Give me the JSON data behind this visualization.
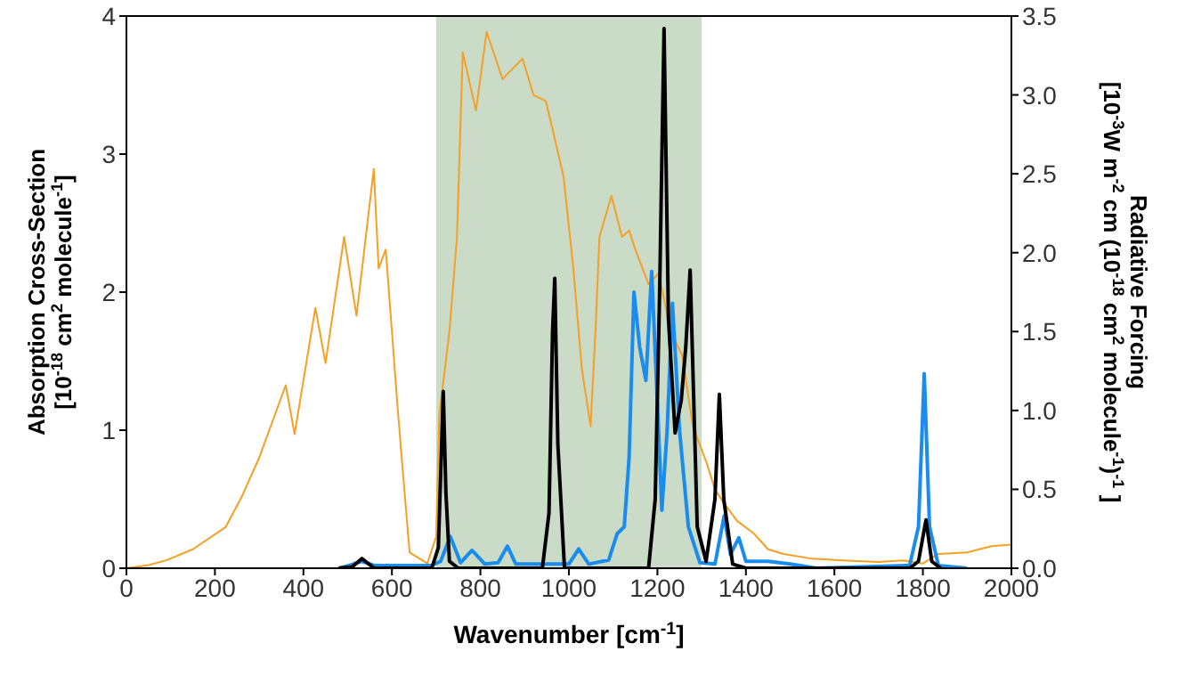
{
  "chart_data": {
    "type": "line",
    "xlabel": "Wavenumber [cm$^{-1}$]",
    "ylabel": "Absorption Cross-Section\n[10$^{-18}$ cm$^{2}$ molecule$^{-1}$]",
    "y2label": "Radiative Forcing\n[10$^{-3}$W m$^{-2}$ cm (10$^{-18}$ cm$^{2}$ molecule$^{-1}$)$^{-1}$ ]",
    "xlim": [
      0,
      2000
    ],
    "xticks": [
      0,
      200,
      400,
      600,
      800,
      1000,
      1200,
      1400,
      1600,
      1800,
      2000
    ],
    "ylim": [
      0,
      4
    ],
    "yticks": [
      0,
      1,
      2,
      3,
      4
    ],
    "y2lim": [
      0,
      3.5
    ],
    "y2ticks": [
      {
        "value": 0,
        "label": "0.0"
      },
      {
        "value": 0.5,
        "label": "0.5"
      },
      {
        "value": 1,
        "label": "1.0"
      },
      {
        "value": 1.5,
        "label": "1.5"
      },
      {
        "value": 2,
        "label": "2.0"
      },
      {
        "value": 2.5,
        "label": "2.5"
      },
      {
        "value": 3,
        "label": "3.0"
      },
      {
        "value": 3.5,
        "label": "3.5"
      }
    ],
    "marker": "none",
    "line_style": "solid",
    "bands": [
      {
        "axis": "x",
        "from": 700,
        "to": 1300,
        "color": "#cadbc8"
      }
    ],
    "series": [
      {
        "color": "#f5a025",
        "axis": "y2",
        "x": [
          0,
          50,
          90,
          150,
          224,
          260,
          300,
          360,
          380,
          427,
          450,
          492,
          520,
          559,
          570,
          586,
          600,
          612,
          625,
          640,
          680,
          700,
          707,
          730,
          747,
          760,
          790,
          814,
          850,
          895,
          920,
          948,
          970,
          988,
          1010,
          1029,
          1049,
          1060,
          1069,
          1096,
          1120,
          1136,
          1150,
          1180,
          1203,
          1230,
          1256,
          1280,
          1311,
          1330,
          1351,
          1380,
          1418,
          1450,
          1485,
          1550,
          1619,
          1700,
          1754,
          1800,
          1834,
          1900,
          1955,
          2000
        ],
        "values": [
          0,
          0.02,
          0.05,
          0.12,
          0.26,
          0.45,
          0.7,
          1.16,
          0.85,
          1.65,
          1.3,
          2.1,
          1.6,
          2.53,
          1.9,
          2.02,
          1.5,
          1.05,
          0.6,
          0.1,
          0.03,
          0.2,
          0.97,
          1.5,
          2.1,
          3.27,
          2.9,
          3.4,
          3.1,
          3.23,
          3.0,
          2.96,
          2.7,
          2.48,
          1.9,
          1.27,
          0.9,
          1.5,
          2.1,
          2.36,
          2.1,
          2.14,
          2.02,
          1.8,
          1.87,
          1.5,
          1.35,
          0.9,
          0.67,
          0.5,
          0.41,
          0.3,
          0.22,
          0.12,
          0.09,
          0.06,
          0.05,
          0.04,
          0.05,
          0.03,
          0.09,
          0.1,
          0.14,
          0.15
        ]
      },
      {
        "color": "#1a8ced",
        "x": [
          480,
          504,
          532,
          560,
          690,
          710,
          732,
          755,
          781,
          810,
          840,
          861,
          880,
          1000,
          1022,
          1045,
          1090,
          1109,
          1125,
          1136,
          1147,
          1160,
          1174,
          1187,
          1200,
          1210,
          1222,
          1234,
          1250,
          1270,
          1296,
          1330,
          1351,
          1365,
          1384,
          1400,
          1450,
          1500,
          1560,
          1770,
          1790,
          1803,
          1815,
          1835,
          1900
        ],
        "values": [
          0,
          0.02,
          0.05,
          0.02,
          0.02,
          0.05,
          0.23,
          0.04,
          0.13,
          0.03,
          0.04,
          0.16,
          0.03,
          0.03,
          0.14,
          0.03,
          0.06,
          0.25,
          0.3,
          0.8,
          2.0,
          1.6,
          1.36,
          2.15,
          1.2,
          0.42,
          1.0,
          1.92,
          1.0,
          0.3,
          0.04,
          0.03,
          0.38,
          0.1,
          0.22,
          0.05,
          0.05,
          0.03,
          0,
          0.02,
          0.3,
          1.41,
          0.3,
          0.02,
          0
        ]
      },
      {
        "color": "#000000",
        "x": [
          480,
          510,
          532,
          560,
          690,
          705,
          716,
          722,
          730,
          750,
          940,
          955,
          963,
          968,
          975,
          990,
          1180,
          1195,
          1205,
          1215,
          1225,
          1240,
          1254,
          1264,
          1274,
          1290,
          1310,
          1330,
          1340,
          1350,
          1370,
          1400,
          1770,
          1790,
          1807,
          1820,
          1840
        ],
        "values": [
          0,
          0.01,
          0.07,
          0,
          0,
          0.15,
          1.28,
          0.55,
          0.05,
          0,
          0,
          0.4,
          1.71,
          2.1,
          0.9,
          0,
          0,
          0.5,
          2.0,
          3.91,
          1.8,
          0.98,
          1.22,
          1.6,
          2.16,
          0.3,
          0.05,
          0.5,
          1.26,
          0.5,
          0.03,
          0,
          0,
          0.05,
          0.35,
          0.05,
          0
        ]
      }
    ]
  }
}
